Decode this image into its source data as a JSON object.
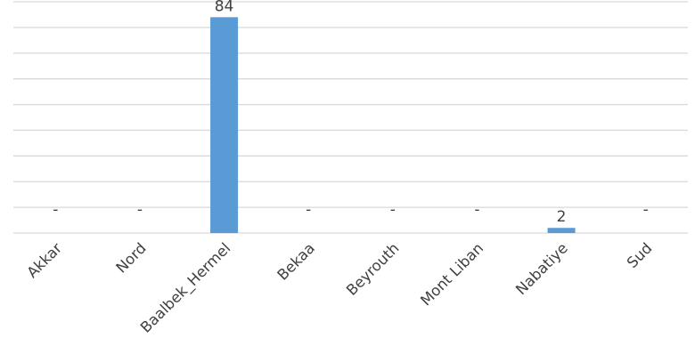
{
  "chart_data": {
    "type": "bar",
    "title": "",
    "xlabel": "",
    "ylabel": "",
    "categories": [
      "Akkar",
      "Nord",
      "Baalbek_Hermel",
      "Bekaa",
      "Beyrouth",
      "Mont Liban",
      "Nabatiye",
      "Sud"
    ],
    "values": [
      0,
      0,
      84,
      0,
      0,
      0,
      2,
      0
    ],
    "data_labels": [
      "-",
      "-",
      "84",
      "-",
      "-",
      "-",
      "2",
      "-"
    ],
    "ylim": [
      0,
      90
    ],
    "gridlines": true,
    "y_axis_labels_shown": false,
    "legend": "none",
    "bar_color": "#5b9bd5"
  }
}
